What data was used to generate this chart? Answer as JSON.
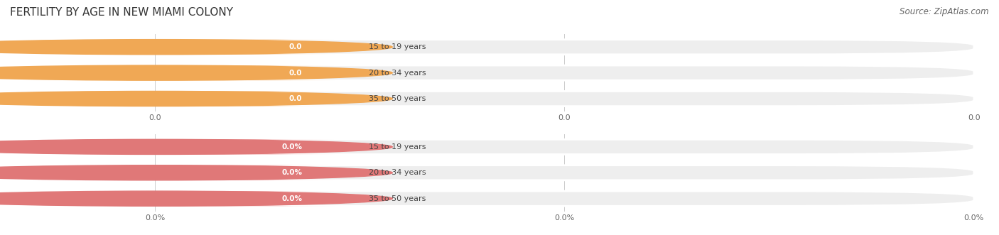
{
  "title": "FERTILITY BY AGE IN NEW MIAMI COLONY",
  "source_text": "Source: ZipAtlas.com",
  "top_section": {
    "categories": [
      "15 to 19 years",
      "20 to 34 years",
      "35 to 50 years"
    ],
    "values": [
      0.0,
      0.0,
      0.0
    ],
    "value_labels": [
      "0.0",
      "0.0",
      "0.0"
    ],
    "bar_color": "#f5c18a",
    "bar_bg_color": "#eeeeee",
    "circle_color": "#f0a855",
    "text_color": "#444444",
    "tick_labels": [
      "0.0",
      "0.0",
      "0.0"
    ]
  },
  "bottom_section": {
    "categories": [
      "15 to 19 years",
      "20 to 34 years",
      "35 to 50 years"
    ],
    "values": [
      0.0,
      0.0,
      0.0
    ],
    "value_labels": [
      "0.0%",
      "0.0%",
      "0.0%"
    ],
    "bar_color": "#f0a0a0",
    "bar_bg_color": "#eeeeee",
    "circle_color": "#e07878",
    "text_color": "#444444",
    "tick_labels": [
      "0.0%",
      "0.0%",
      "0.0%"
    ]
  },
  "fig_width": 14.06,
  "fig_height": 3.31,
  "dpi": 100,
  "bg_color": "#ffffff",
  "title_fontsize": 11,
  "title_color": "#333333",
  "source_fontsize": 8.5,
  "source_color": "#666666",
  "x_tick_labels_top": [
    "0.0",
    "0.0",
    "0.0"
  ],
  "x_tick_labels_bottom": [
    "0.0%",
    "0.0%",
    "0.0%"
  ]
}
